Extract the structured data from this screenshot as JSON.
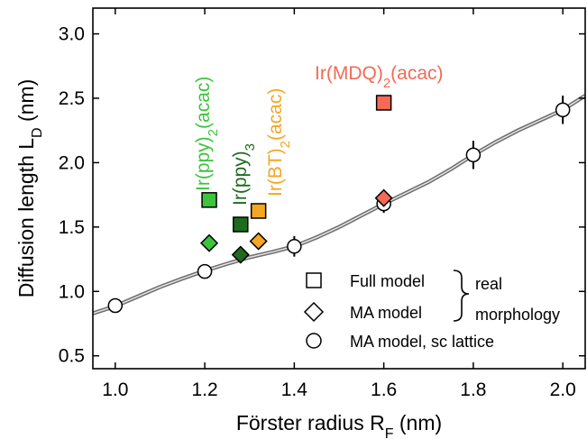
{
  "chart_data": {
    "type": "scatter",
    "xlabel": {
      "main": "Förster radius R",
      "sub": "F",
      "unit": " (nm)"
    },
    "ylabel": {
      "main": "Diffusion length L",
      "sub": "D",
      "unit": " (nm)"
    },
    "xlim": [
      0.95,
      2.05
    ],
    "ylim": [
      0.4,
      3.2
    ],
    "x_ticks": [
      "1.0",
      "1.2",
      "1.4",
      "1.6",
      "1.8",
      "2.0"
    ],
    "y_ticks": [
      "0.5",
      "1.0",
      "1.5",
      "2.0",
      "2.5",
      "3.0"
    ],
    "grid": false,
    "fit_curve": {
      "color": "#777777",
      "points": [
        [
          0.95,
          0.83
        ],
        [
          1.0,
          0.885
        ],
        [
          1.05,
          0.96
        ],
        [
          1.1,
          1.035
        ],
        [
          1.15,
          1.1
        ],
        [
          1.2,
          1.16
        ],
        [
          1.25,
          1.215
        ],
        [
          1.3,
          1.265
        ],
        [
          1.35,
          1.305
        ],
        [
          1.4,
          1.35
        ],
        [
          1.45,
          1.42
        ],
        [
          1.5,
          1.5
        ],
        [
          1.55,
          1.59
        ],
        [
          1.6,
          1.68
        ],
        [
          1.65,
          1.765
        ],
        [
          1.7,
          1.85
        ],
        [
          1.75,
          1.95
        ],
        [
          1.8,
          2.06
        ],
        [
          1.85,
          2.16
        ],
        [
          1.9,
          2.25
        ],
        [
          1.95,
          2.33
        ],
        [
          2.0,
          2.41
        ],
        [
          2.05,
          2.52
        ]
      ]
    },
    "sc_lattice": {
      "marker": "circle",
      "points": [
        {
          "x": 1.0,
          "y": 0.89,
          "err": 0.04
        },
        {
          "x": 1.2,
          "y": 1.155,
          "err": 0.03
        },
        {
          "x": 1.4,
          "y": 1.35,
          "err": 0.08
        },
        {
          "x": 1.6,
          "y": 1.68,
          "err": 0.07
        },
        {
          "x": 1.8,
          "y": 2.06,
          "err": 0.11
        },
        {
          "x": 2.0,
          "y": 2.41,
          "err": 0.11
        }
      ]
    },
    "series": [
      {
        "name": "Ir(ppy)2(acac)",
        "color": "#3dc43d",
        "full": {
          "x": 1.21,
          "y": 1.71
        },
        "ma": {
          "x": 1.21,
          "y": 1.375
        }
      },
      {
        "name": "Ir(ppy)3",
        "color": "#1e6b1e",
        "full": {
          "x": 1.28,
          "y": 1.52
        },
        "ma": {
          "x": 1.28,
          "y": 1.285
        }
      },
      {
        "name": "Ir(BT)2(acac)",
        "color": "#f5a623",
        "full": {
          "x": 1.32,
          "y": 1.625
        },
        "ma": {
          "x": 1.32,
          "y": 1.39
        }
      },
      {
        "name": "Ir(MDQ)2(acac)",
        "color": "#f36a55",
        "full": {
          "x": 1.6,
          "y": 2.465
        },
        "ma": {
          "x": 1.6,
          "y": 1.725
        }
      }
    ],
    "compound_labels": [
      {
        "main": "Ir(ppy)",
        "sub": "2",
        "tail": "(acac)"
      },
      {
        "main": "Ir(ppy)",
        "sub": "3",
        "tail": ""
      },
      {
        "main": "Ir(BT)",
        "sub": "2",
        "tail": "(acac)"
      },
      {
        "main": "Ir(MDQ)",
        "sub": "2",
        "tail": "(acac)"
      }
    ],
    "legend": {
      "placement": "bottom-right",
      "entries": [
        {
          "marker": "square",
          "label": "Full model"
        },
        {
          "marker": "diamond",
          "label": "MA model"
        },
        {
          "marker": "circle",
          "label": "MA model, sc lattice"
        }
      ],
      "brace_label": [
        "real",
        "morphology"
      ]
    }
  }
}
